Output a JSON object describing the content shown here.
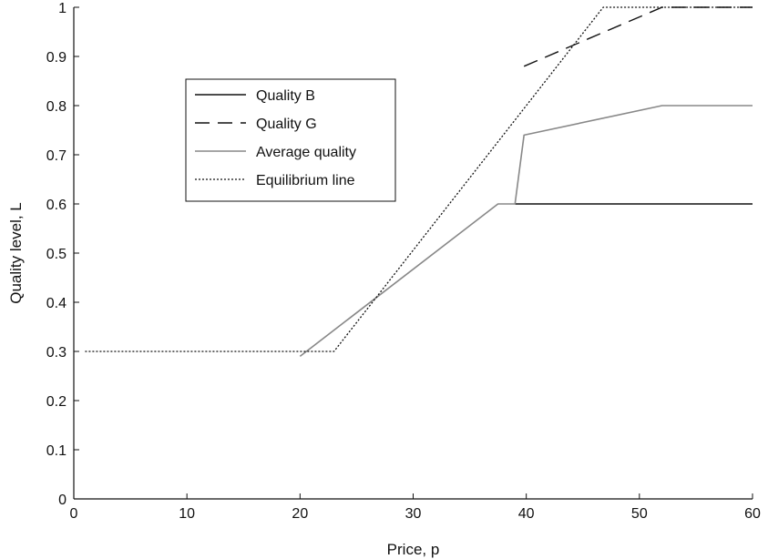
{
  "chart_data": {
    "type": "line",
    "title": "",
    "xlabel": "Price, p",
    "ylabel": "Quality level, L",
    "xlim": [
      0,
      60
    ],
    "ylim": [
      0,
      1
    ],
    "grid": false,
    "x_ticks": [
      0,
      10,
      20,
      30,
      40,
      50,
      60
    ],
    "x_tick_labels": [
      "0",
      "10",
      "20",
      "30",
      "40",
      "50",
      "60"
    ],
    "y_ticks": [
      0,
      0.1,
      0.2,
      0.3,
      0.4,
      0.5,
      0.6,
      0.7,
      0.8,
      0.9,
      1
    ],
    "y_tick_labels": [
      "0",
      "0.1",
      "0.2",
      "0.3",
      "0.4",
      "0.5",
      "0.6",
      "0.7",
      "0.8",
      "0.9",
      "1"
    ],
    "legend_position": "upper-left-center",
    "series": [
      {
        "name": "Quality B",
        "style": "solid",
        "color": "#111111",
        "points": [
          [
            39,
            0.6
          ],
          [
            60,
            0.6
          ]
        ]
      },
      {
        "name": "Quality G",
        "style": "dashed",
        "color": "#111111",
        "points": [
          [
            39.8,
            0.88
          ],
          [
            52,
            1.0
          ],
          [
            60,
            1.0
          ]
        ]
      },
      {
        "name": "Average quality",
        "style": "solid",
        "color": "#888888",
        "points": [
          [
            20,
            0.29
          ],
          [
            37.5,
            0.6
          ],
          [
            39,
            0.6
          ],
          [
            39.8,
            0.74
          ],
          [
            52,
            0.8
          ],
          [
            60,
            0.8
          ]
        ]
      },
      {
        "name": "Equilibrium line",
        "style": "dotted",
        "color": "#111111",
        "points": [
          [
            1,
            0.3
          ],
          [
            23,
            0.3
          ],
          [
            46.8,
            1.0
          ],
          [
            60,
            1.0
          ]
        ]
      }
    ]
  }
}
